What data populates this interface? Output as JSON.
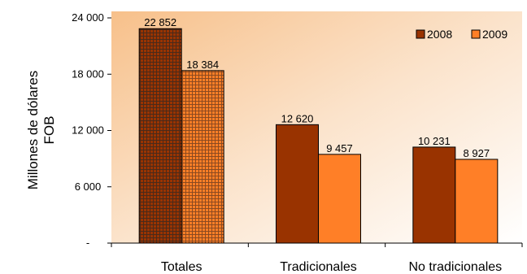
{
  "chart_data": {
    "type": "bar",
    "ylabel": [
      "Millones de dólares",
      "FOB"
    ],
    "ylim": [
      0,
      24000
    ],
    "yticks": [
      0,
      6000,
      12000,
      18000,
      24000
    ],
    "ytick_labels": [
      "-",
      "6 000",
      "12 000",
      "18 000",
      "24 000"
    ],
    "categories": [
      "Totales",
      "Tradicionales",
      "No tradicionales"
    ],
    "series": [
      {
        "name": "2008",
        "values": [
          22852,
          12620,
          10231
        ],
        "labels": [
          "22 852",
          "12 620",
          "10 231"
        ],
        "color": "#993300"
      },
      {
        "name": "2009",
        "values": [
          18384,
          9457,
          8927
        ],
        "labels": [
          "18 384",
          "9 457",
          "8 927"
        ],
        "color": "#ff7f27"
      }
    ],
    "legend_position": "top-right",
    "highlight_category": "Totales",
    "background_gradient": [
      "#f7c08a",
      "#ffffff"
    ]
  }
}
